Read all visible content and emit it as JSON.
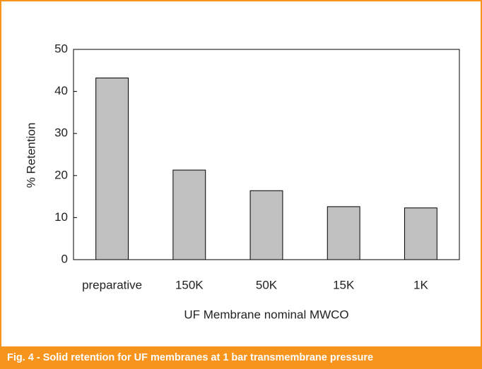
{
  "chart_data": {
    "type": "bar",
    "caption": "Fig. 4 - Solid retention for UF membranes at 1 bar transmembrane pressure",
    "xlabel": "UF Membrane nominal MWCO",
    "ylabel": "% Retention",
    "categories": [
      "preparative",
      "150K",
      "50K",
      "15K",
      "1K"
    ],
    "values": [
      43.2,
      21.3,
      16.4,
      12.6,
      12.3
    ],
    "color": "#c0c0c0",
    "ylim": [
      0,
      50
    ],
    "yticks": [
      0,
      10,
      20,
      30,
      40,
      50
    ],
    "grid": false
  }
}
